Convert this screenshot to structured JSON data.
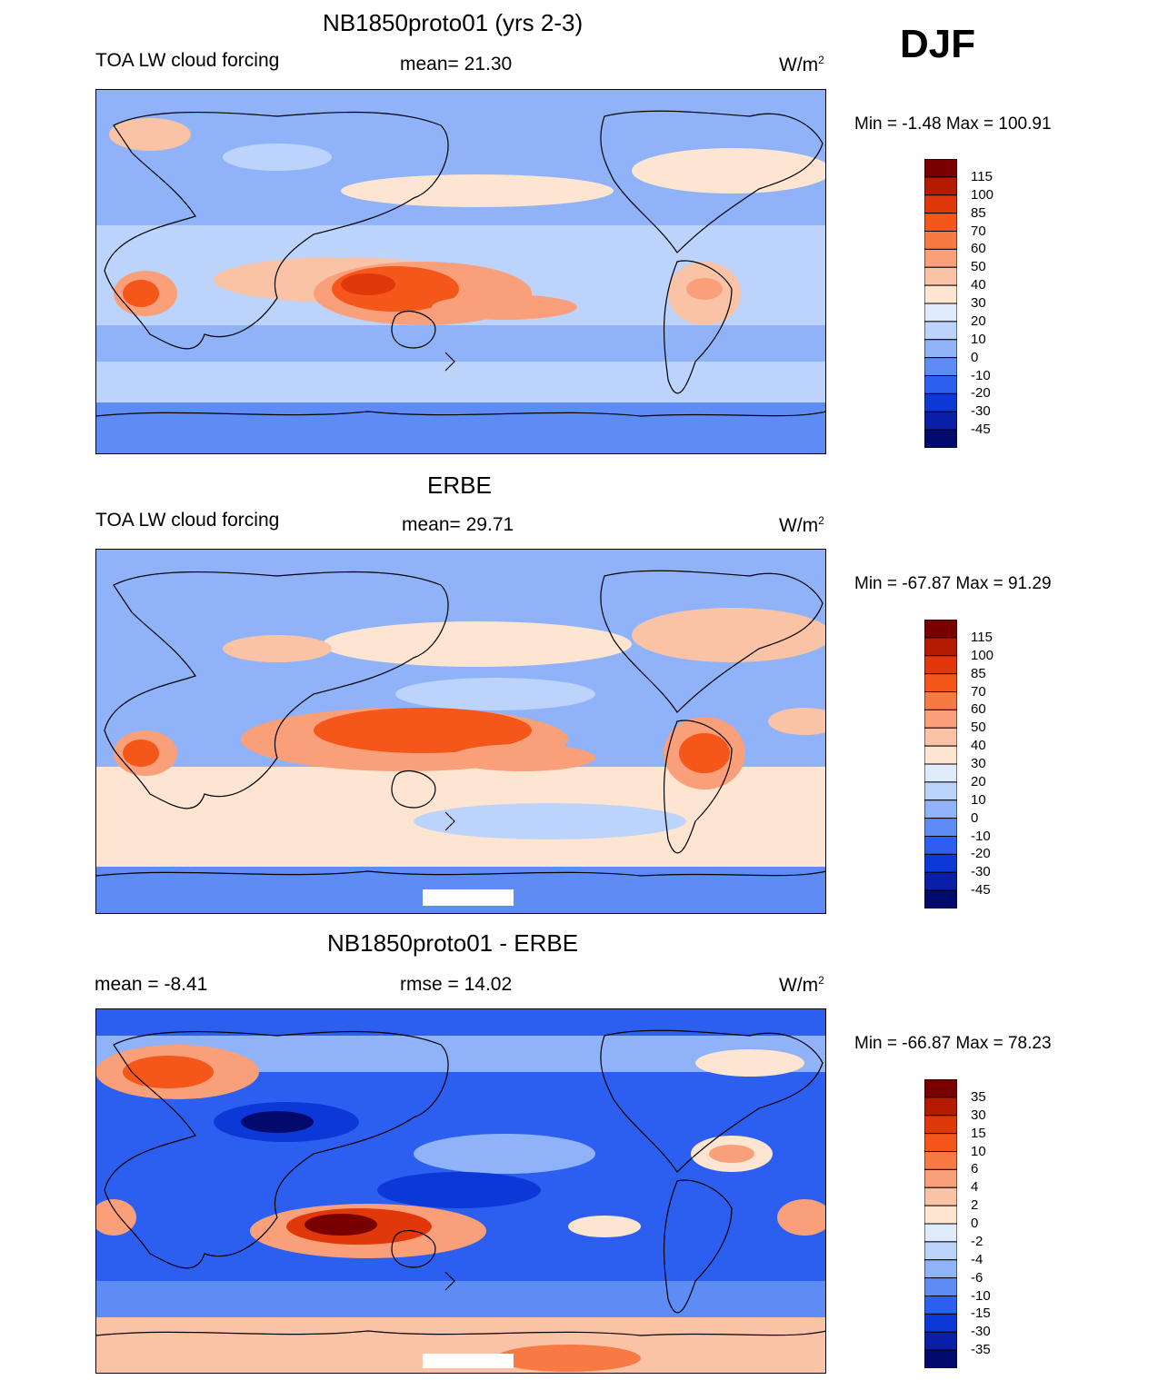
{
  "season": "DJF",
  "panels": [
    {
      "title": "NB1850proto01 (yrs 2-3)",
      "left_label": "TOA LW cloud forcing",
      "center_label": "mean=  21.30",
      "units": "W/m",
      "units_sup": "2",
      "minmax": "Min =  -1.48 Max = 100.91",
      "colorbar_labels": [
        "115",
        "100",
        "85",
        "70",
        "60",
        "50",
        "40",
        "30",
        "20",
        "10",
        "0",
        "-10",
        "-20",
        "-30",
        "-45"
      ]
    },
    {
      "title": "ERBE",
      "left_label": "TOA LW cloud forcing",
      "center_label": "mean=  29.71",
      "units": "W/m",
      "units_sup": "2",
      "minmax": "Min = -67.87 Max =  91.29",
      "colorbar_labels": [
        "115",
        "100",
        "85",
        "70",
        "60",
        "50",
        "40",
        "30",
        "20",
        "10",
        "0",
        "-10",
        "-20",
        "-30",
        "-45"
      ]
    },
    {
      "title": "NB1850proto01 - ERBE",
      "left_label": "mean =  -8.41",
      "center_label": "rmse =  14.02",
      "units": "W/m",
      "units_sup": "2",
      "minmax": "Min = -66.87 Max =  78.23",
      "colorbar_labels": [
        "35",
        "30",
        "15",
        "10",
        "6",
        "4",
        "2",
        "0",
        "-2",
        "-4",
        "-6",
        "-10",
        "-15",
        "-30",
        "-35"
      ]
    }
  ],
  "colors": {
    "palette": [
      "#7a0000",
      "#b31a00",
      "#e0380a",
      "#f5561a",
      "#f77a45",
      "#f9a07a",
      "#fbc3a6",
      "#fde5d2",
      "#dfeafb",
      "#bcd3fb",
      "#8fb2f9",
      "#5e8cf5",
      "#2c5ff0",
      "#0d38d8",
      "#0a1fa8",
      "#020a6e"
    ],
    "coast": "#000000"
  }
}
